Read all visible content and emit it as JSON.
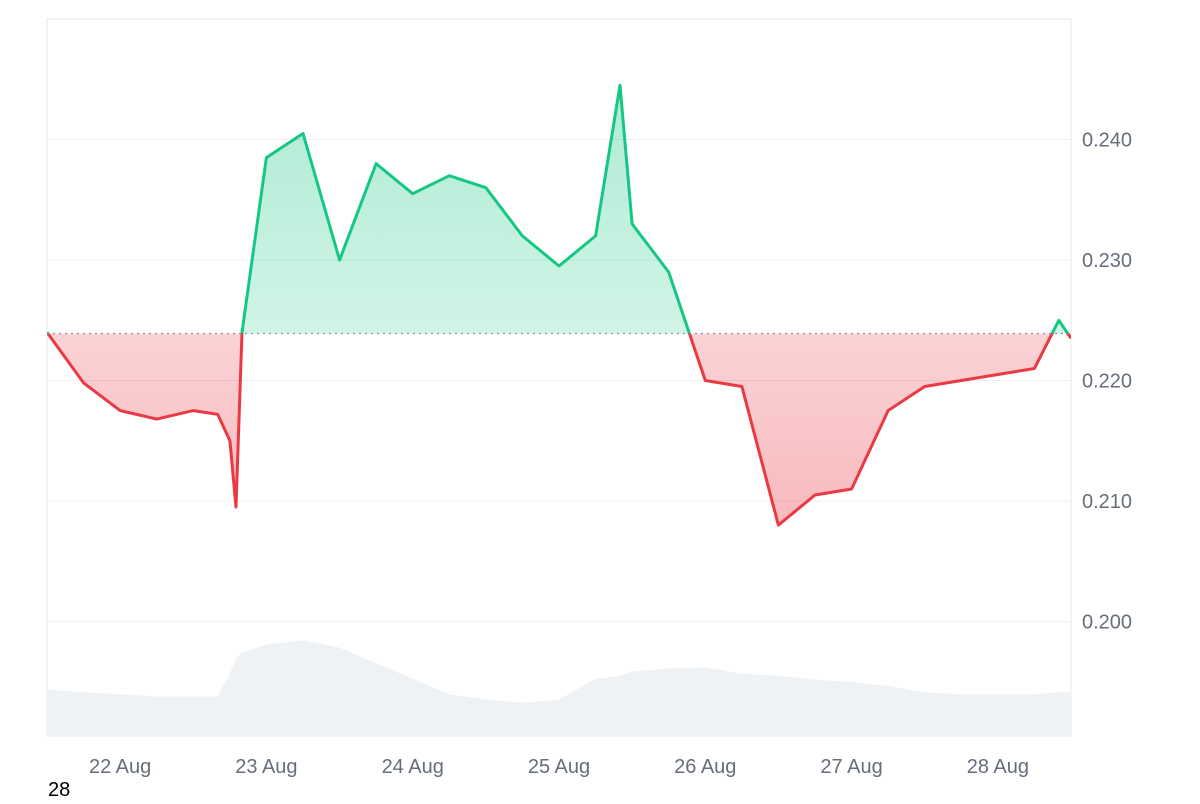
{
  "chart_data": {
    "type": "area",
    "baseline": 0.2239,
    "x": [
      "21 Aug 12:00",
      "21 Aug 18:00",
      "22 Aug 00:00",
      "22 Aug 06:00",
      "22 Aug 12:00",
      "22 Aug 16:00",
      "22 Aug 18:00",
      "22 Aug 19:00",
      "22 Aug 20:00",
      "23 Aug 00:00",
      "23 Aug 06:00",
      "23 Aug 12:00",
      "23 Aug 18:00",
      "24 Aug 00:00",
      "24 Aug 06:00",
      "24 Aug 12:00",
      "24 Aug 18:00",
      "25 Aug 00:00",
      "25 Aug 06:00",
      "25 Aug 10:00",
      "25 Aug 12:00",
      "25 Aug 18:00",
      "26 Aug 00:00",
      "26 Aug 06:00",
      "26 Aug 12:00",
      "26 Aug 18:00",
      "27 Aug 00:00",
      "27 Aug 06:00",
      "27 Aug 12:00",
      "27 Aug 18:00",
      "28 Aug 00:00",
      "28 Aug 06:00",
      "28 Aug 10:00",
      "28 Aug 12:00"
    ],
    "values": [
      0.224,
      0.2198,
      0.2175,
      0.2168,
      0.2175,
      0.2172,
      0.215,
      0.2095,
      0.224,
      0.2385,
      0.2405,
      0.23,
      0.238,
      0.2355,
      0.237,
      0.236,
      0.232,
      0.2295,
      0.232,
      0.2445,
      0.233,
      0.229,
      0.22,
      0.2195,
      0.208,
      0.2105,
      0.211,
      0.2175,
      0.2195,
      0.22,
      0.2205,
      0.221,
      0.225,
      0.2235
    ],
    "volume": [
      0.45,
      0.42,
      0.4,
      0.38,
      0.38,
      0.38,
      0.6,
      0.75,
      0.8,
      0.88,
      0.92,
      0.85,
      0.7,
      0.55,
      0.4,
      0.35,
      0.32,
      0.35,
      0.55,
      0.58,
      0.62,
      0.65,
      0.66,
      0.6,
      0.58,
      0.54,
      0.52,
      0.48,
      0.42,
      0.4,
      0.4,
      0.4,
      0.42,
      0.42
    ],
    "x_ticks": [
      "22 Aug",
      "23 Aug",
      "24 Aug",
      "25 Aug",
      "26 Aug",
      "27 Aug",
      "28 Aug"
    ],
    "y_ticks": [
      "0.240",
      "0.230",
      "0.220",
      "0.210",
      "0.200"
    ],
    "ylim": [
      0.1905,
      0.25
    ],
    "grid": true,
    "colors": {
      "up_line": "#16c784",
      "down_line": "#ea3943",
      "up_fill": "#16c784",
      "down_fill": "#ea3943",
      "volume": "#eff2f5",
      "grid": "#eceff3",
      "baseline": "#8a8f98",
      "tick_text": "#666e79"
    }
  },
  "corner_label": "28"
}
